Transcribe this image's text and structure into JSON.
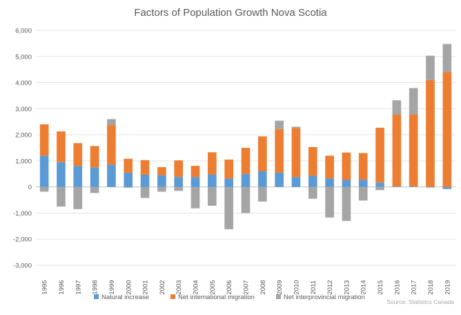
{
  "chart_data": {
    "type": "bar",
    "stacked": true,
    "title": "Factors of Population Growth Nova Scotia",
    "xlabel": "",
    "ylabel": "",
    "ylim": [
      -3000,
      6000
    ],
    "yticks": [
      6000,
      5000,
      4000,
      3000,
      2000,
      1000,
      0,
      -1000,
      -2000,
      -3000
    ],
    "ytick_labels": [
      "6,000",
      "5,000",
      "4,000",
      "3,000",
      "2,000",
      "1,000",
      "0",
      "-1,000",
      "-2,000",
      "-3,000"
    ],
    "grid": true,
    "legend_position": "bottom",
    "categories": [
      "1995",
      "1996",
      "1997",
      "1998",
      "1999",
      "2000",
      "2001",
      "2002",
      "2003",
      "2004",
      "2005",
      "2006",
      "2007",
      "2008",
      "2009",
      "2010",
      "2011",
      "2012",
      "2013",
      "2014",
      "2015",
      "2016",
      "2017",
      "2018",
      "2019"
    ],
    "series": [
      {
        "name": "Natural increase",
        "color": "#5b9bd5",
        "values": [
          1200,
          950,
          800,
          750,
          850,
          550,
          470,
          450,
          380,
          380,
          480,
          320,
          500,
          600,
          550,
          380,
          430,
          330,
          270,
          280,
          170,
          20,
          20,
          -20,
          -80
        ]
      },
      {
        "name": "Net international migration",
        "color": "#ed7d31",
        "values": [
          1200,
          1180,
          880,
          820,
          1520,
          530,
          560,
          310,
          640,
          430,
          850,
          730,
          1000,
          1340,
          1670,
          1880,
          1100,
          870,
          1050,
          1020,
          2100,
          2750,
          2750,
          4100,
          4400
        ]
      },
      {
        "name": "Net interprovincial migration",
        "color": "#a5a5a5",
        "values": [
          -180,
          -750,
          -850,
          -230,
          230,
          -30,
          -420,
          -180,
          -150,
          -820,
          -720,
          -1620,
          -1000,
          -560,
          320,
          50,
          -450,
          -1170,
          -1300,
          -520,
          -120,
          550,
          1020,
          930,
          1080
        ]
      }
    ],
    "source": "Source: Statistics Canada"
  }
}
